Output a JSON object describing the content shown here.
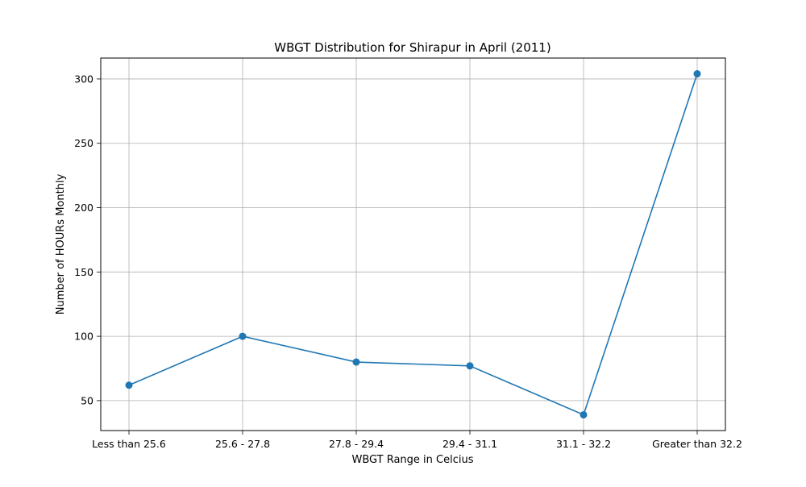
{
  "chart_data": {
    "type": "line",
    "title": "WBGT Distribution for Shirapur in April (2011)",
    "xlabel": "WBGT Range in Celcius",
    "ylabel": "Number of HOURs Monthly",
    "categories": [
      "Less than 25.6",
      "25.6 - 27.8",
      "27.8 - 29.4",
      "29.4 - 31.1",
      "31.1 - 32.2",
      "Greater than 32.2"
    ],
    "series": [
      {
        "values": [
          62,
          100,
          80,
          77,
          39,
          304
        ],
        "color": "#1f77b4"
      }
    ],
    "ylim": [
      26.75,
      316.25
    ],
    "yticks": [
      50,
      100,
      150,
      200,
      250,
      300
    ],
    "grid": true,
    "marker": "circle"
  }
}
